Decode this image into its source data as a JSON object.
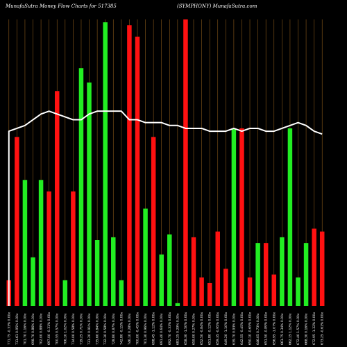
{
  "chart_data": {
    "type": "bar",
    "title": "MunafaSutra  Money Flow  Charts for 517385",
    "subtitle": "(SYMPHONY) MunafaSutra.com",
    "colors": {
      "up": "#22ee22",
      "down": "#ff1111",
      "line": "#ffffff",
      "grid": "#8b5a1a",
      "background": "#000000"
    },
    "grid": true,
    "ylim": [
      0,
      100
    ],
    "line_ylim": [
      0,
      100
    ],
    "series": [
      {
        "values": [
          9,
          59,
          44,
          17,
          44,
          40,
          75,
          9,
          40,
          83,
          78,
          23,
          99,
          24,
          9,
          98,
          94,
          34,
          59,
          18,
          25,
          1,
          100,
          24,
          10,
          8,
          26,
          13,
          62,
          62,
          10,
          22,
          22,
          11,
          24,
          62,
          10,
          22,
          27,
          26
        ]
      },
      {
        "values": [
          61,
          62,
          63,
          65,
          67,
          68,
          67,
          66,
          65,
          65,
          67,
          68,
          68,
          68,
          68,
          65,
          65,
          64,
          64,
          64,
          63,
          63,
          62,
          62,
          62,
          61,
          61,
          61,
          62,
          61,
          62,
          62,
          61,
          61,
          62,
          63,
          64,
          63,
          61,
          60
        ]
      }
    ],
    "bar_colors": [
      "red",
      "red",
      "green",
      "green",
      "green",
      "red",
      "red",
      "green",
      "red",
      "green",
      "green",
      "green",
      "green",
      "green",
      "green",
      "red",
      "red",
      "green",
      "red",
      "green",
      "green",
      "green",
      "red",
      "red",
      "red",
      "red",
      "red",
      "red",
      "green",
      "red",
      "red",
      "green",
      "red",
      "red",
      "green",
      "green",
      "green",
      "green",
      "red",
      "red"
    ],
    "categories": [
      "771.75 -0.33% 0.00x",
      "711.61 0.95% 0.00x",
      "701.70 1.16% 0.00x",
      "698.70 0.86% 0.00x",
      "702.00 0.88% 0.00x",
      "697.00 -0.31% 0.00x",
      "700.55 0.57% 0.00x",
      "706.10 1.02% 0.00x",
      "714.00 0.58% 0.00x",
      "719.25 0.71% 0.00x",
      "731.20 0.91% 0.00x",
      "735.60 0.84% 0.00x",
      "732.30 0.58% 0.00x",
      "728.80 0.87% 0.00x",
      "742.80 -0.15% 0.00x",
      "746.10 0.28% 0.00x",
      "700.00 -0.45% 0.00x",
      "701.30 0.96% 0.00x",
      "698.45 -1.12% 0.00x",
      "691.40 0.64% 0.00x",
      "692.70 -0.33% 0.00x",
      "683.25 0.29% 0.00x",
      "658.30 -1.50% 0.00x",
      "659.00 0.27% 0.00x",
      "652.50 -0.84% 0.00x",
      "651.80 -0.12% 0.00x",
      "659.35 -0.95% 0.00x",
      "649.20 -1.10% 0.00x",
      "639.70 0.93% 0.00x",
      "642.55 -0.45% 0.00x",
      "650.10 -0.65% 0.00x",
      "646.05 0.73% 0.00x",
      "651.50 -0.89% 0.00x",
      "656.95 -1.07% 0.00x",
      "661.75 0.34% 0.00x",
      "662.15 1.12% 0.00x",
      "672.40 1.57% 0.00x",
      "668.30 0.16% 0.00x",
      "672.95 -1.32% 0.00x",
      "673.25 -0.61% 0.00x"
    ]
  }
}
